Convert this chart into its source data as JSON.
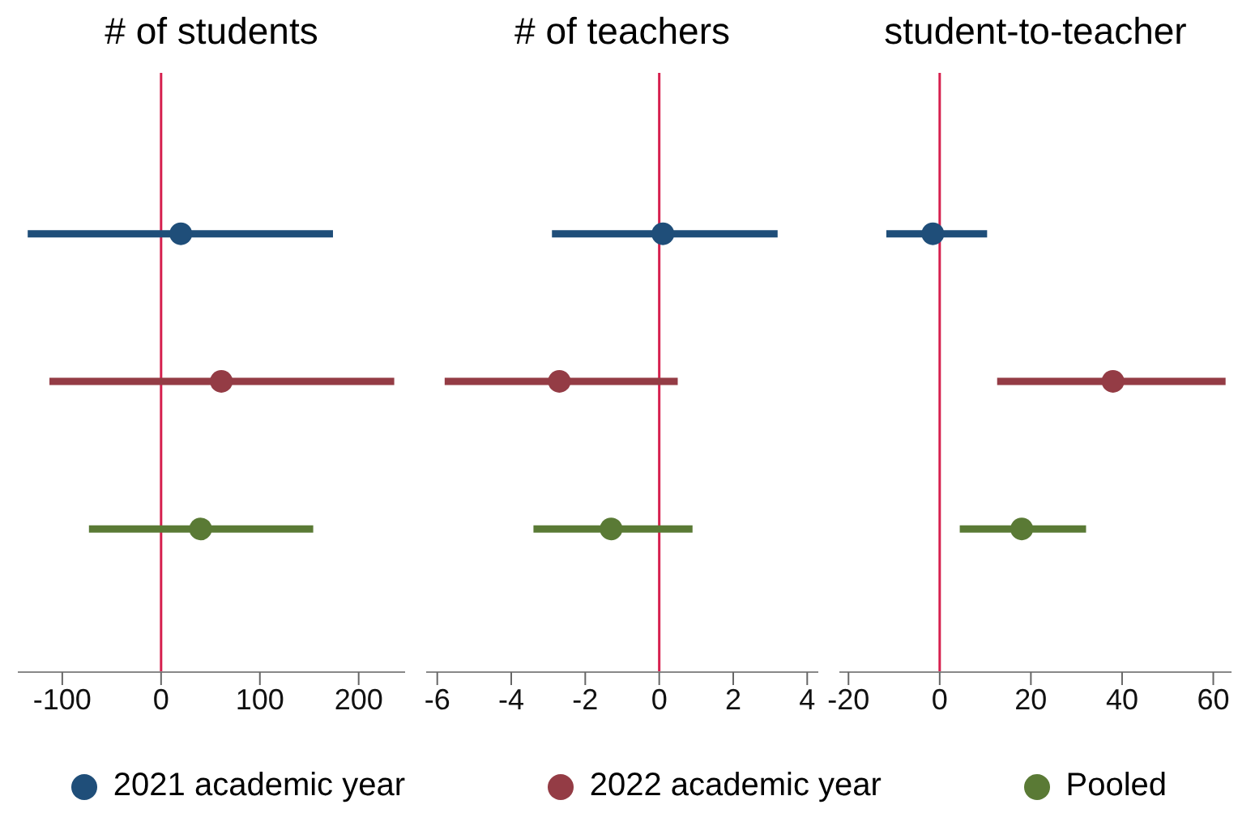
{
  "chart_data": [
    {
      "type": "scatter",
      "title": "# of students",
      "orientation": "horizontal",
      "categories": [
        null,
        null,
        null
      ],
      "xlim": [
        -145,
        247
      ],
      "xticks": [
        -100,
        0,
        100,
        200
      ],
      "tick_labels": "x",
      "marker": "circle",
      "grid": false,
      "legend": "bottom",
      "ref_lines": [
        {
          "axis": "x",
          "value": 0,
          "color": "#d6204e"
        }
      ],
      "series": [
        {
          "name": "2021 academic year",
          "color": "#1f4e79",
          "values": [
            20,
            null,
            null
          ],
          "errors": [
            [
              -135,
              174
            ],
            null,
            null
          ]
        },
        {
          "name": "2022 academic year",
          "color": "#943c45",
          "values": [
            null,
            61,
            null
          ],
          "errors": [
            null,
            [
              -113,
              236
            ],
            null
          ]
        },
        {
          "name": "Pooled",
          "color": "#5a7a35",
          "values": [
            null,
            null,
            40
          ],
          "errors": [
            null,
            null,
            [
              -73,
              154
            ]
          ]
        }
      ]
    },
    {
      "type": "scatter",
      "title": "# of teachers",
      "orientation": "horizontal",
      "categories": [
        null,
        null,
        null
      ],
      "xlim": [
        -6.3,
        4.3
      ],
      "xticks": [
        -6,
        -4,
        -2,
        0,
        2,
        4
      ],
      "tick_labels": "x",
      "marker": "circle",
      "grid": false,
      "ref_lines": [
        {
          "axis": "x",
          "value": 0,
          "color": "#d6204e"
        }
      ],
      "series": [
        {
          "color": "#1f4e79",
          "values": [
            0.1,
            null,
            null
          ],
          "errors": [
            [
              -2.9,
              3.2
            ],
            null,
            null
          ]
        },
        {
          "color": "#943c45",
          "values": [
            null,
            -2.7,
            null
          ],
          "errors": [
            null,
            [
              -5.8,
              0.5
            ],
            null
          ]
        },
        {
          "color": "#5a7a35",
          "values": [
            null,
            null,
            -1.3
          ],
          "errors": [
            null,
            null,
            [
              -3.4,
              0.9
            ]
          ]
        }
      ]
    },
    {
      "type": "scatter",
      "title": "student-to-teacher",
      "orientation": "horizontal",
      "categories": [
        null,
        null,
        null
      ],
      "xlim": [
        -22,
        64
      ],
      "xticks": [
        -20,
        0,
        20,
        40,
        60
      ],
      "tick_labels": "x",
      "marker": "circle",
      "grid": false,
      "ref_lines": [
        {
          "axis": "x",
          "value": 0,
          "color": "#d6204e"
        }
      ],
      "series": [
        {
          "color": "#1f4e79",
          "values": [
            -1.5,
            null,
            null
          ],
          "errors": [
            [
              -11.7,
              10.4
            ],
            null,
            null
          ]
        },
        {
          "color": "#943c45",
          "values": [
            null,
            38,
            null
          ],
          "errors": [
            null,
            [
              12.6,
              62.7
            ],
            null
          ]
        },
        {
          "color": "#5a7a35",
          "values": [
            null,
            null,
            18
          ],
          "errors": [
            null,
            null,
            [
              4.4,
              32.1
            ]
          ]
        }
      ]
    }
  ]
}
